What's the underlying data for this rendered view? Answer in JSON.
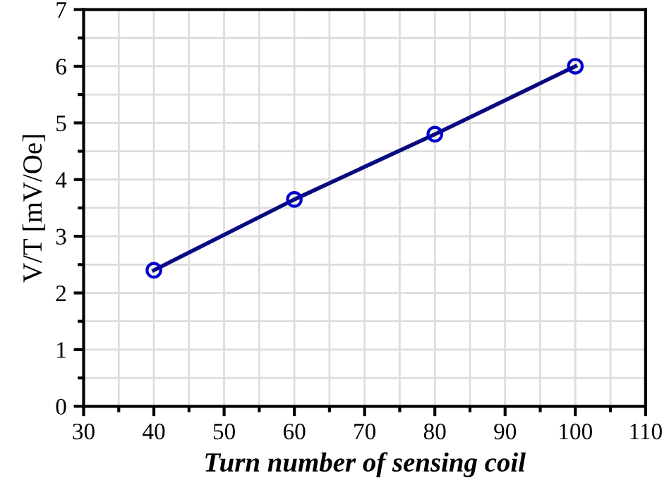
{
  "chart_data": {
    "type": "line",
    "xlabel": "Turn number of sensing coil",
    "ylabel": "V/T [mV/Oe]",
    "x": [
      40,
      60,
      80,
      100
    ],
    "series": [
      {
        "color": "#0a0a80",
        "values": [
          2.4,
          3.65,
          4.8,
          6.0
        ]
      }
    ],
    "xlim": [
      30,
      110
    ],
    "xticks": [
      30,
      40,
      50,
      60,
      70,
      80,
      90,
      100,
      110
    ],
    "ylim": [
      0,
      7
    ],
    "yticks": [
      0,
      1,
      2,
      3,
      4,
      5,
      6,
      7
    ],
    "grid": true,
    "marker": "circle",
    "line_style": "solid"
  }
}
